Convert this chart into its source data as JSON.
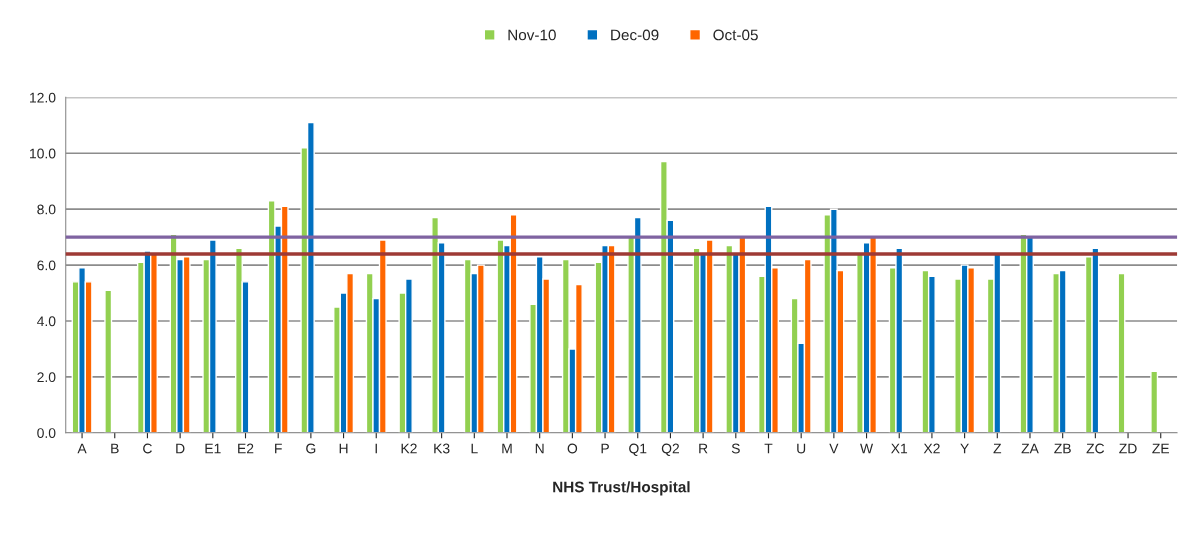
{
  "chart_data": {
    "type": "bar",
    "xlabel": "NHS Trust/Hospital",
    "categories": [
      "A",
      "B",
      "C",
      "D",
      "E1",
      "E2",
      "F",
      "G",
      "H",
      "I",
      "K2",
      "K3",
      "L",
      "M",
      "N",
      "O",
      "P",
      "Q1",
      "Q2",
      "R",
      "S",
      "T",
      "U",
      "V",
      "W",
      "X1",
      "X2",
      "Y",
      "Z",
      "ZA",
      "ZB",
      "ZC",
      "ZD",
      "ZE"
    ],
    "series": [
      {
        "name": "Nov-10",
        "color": "#92d050",
        "values": [
          5.4,
          5.1,
          6.1,
          7.1,
          6.2,
          6.6,
          8.3,
          10.2,
          4.5,
          5.7,
          5.0,
          7.7,
          6.2,
          6.9,
          4.6,
          6.2,
          6.1,
          7.0,
          9.7,
          6.6,
          6.7,
          5.6,
          4.8,
          7.8,
          6.4,
          5.9,
          5.8,
          5.5,
          5.5,
          7.1,
          5.7,
          6.3,
          5.7,
          2.2
        ]
      },
      {
        "name": "Dec-09",
        "color": "#0070c0",
        "values": [
          5.9,
          null,
          6.5,
          6.2,
          6.9,
          5.4,
          7.4,
          11.1,
          5.0,
          4.8,
          5.5,
          6.8,
          5.7,
          6.7,
          6.3,
          3.0,
          6.7,
          7.7,
          7.6,
          6.4,
          6.4,
          8.1,
          3.2,
          8.0,
          6.8,
          6.6,
          5.6,
          6.0,
          6.4,
          7.0,
          5.8,
          6.6,
          null,
          null
        ]
      },
      {
        "name": "Oct-05",
        "color": "#ff6600",
        "values": [
          5.4,
          null,
          6.4,
          6.3,
          null,
          null,
          8.1,
          null,
          5.7,
          6.9,
          null,
          null,
          6.0,
          7.8,
          5.5,
          5.3,
          6.7,
          null,
          null,
          6.9,
          7.0,
          5.9,
          6.2,
          5.8,
          7.0,
          null,
          null,
          5.9,
          null,
          null,
          null,
          null,
          null,
          null
        ]
      }
    ],
    "ylim": [
      0,
      12
    ],
    "yticks": [
      {
        "value": 0,
        "label": "0.0"
      },
      {
        "value": 2,
        "label": "2.0"
      },
      {
        "value": 4,
        "label": "4.0"
      },
      {
        "value": 6,
        "label": "6.0"
      },
      {
        "value": 8,
        "label": "8.0"
      },
      {
        "value": 10,
        "label": "10.0"
      },
      {
        "value": 12,
        "label": "12.0"
      }
    ],
    "ref_lines": [
      {
        "axis": "y",
        "value": 7.0,
        "color": "#7f63a1"
      },
      {
        "axis": "y",
        "value": 6.4,
        "color": "#9e3a35"
      }
    ],
    "grid": "y",
    "legend": "top"
  }
}
